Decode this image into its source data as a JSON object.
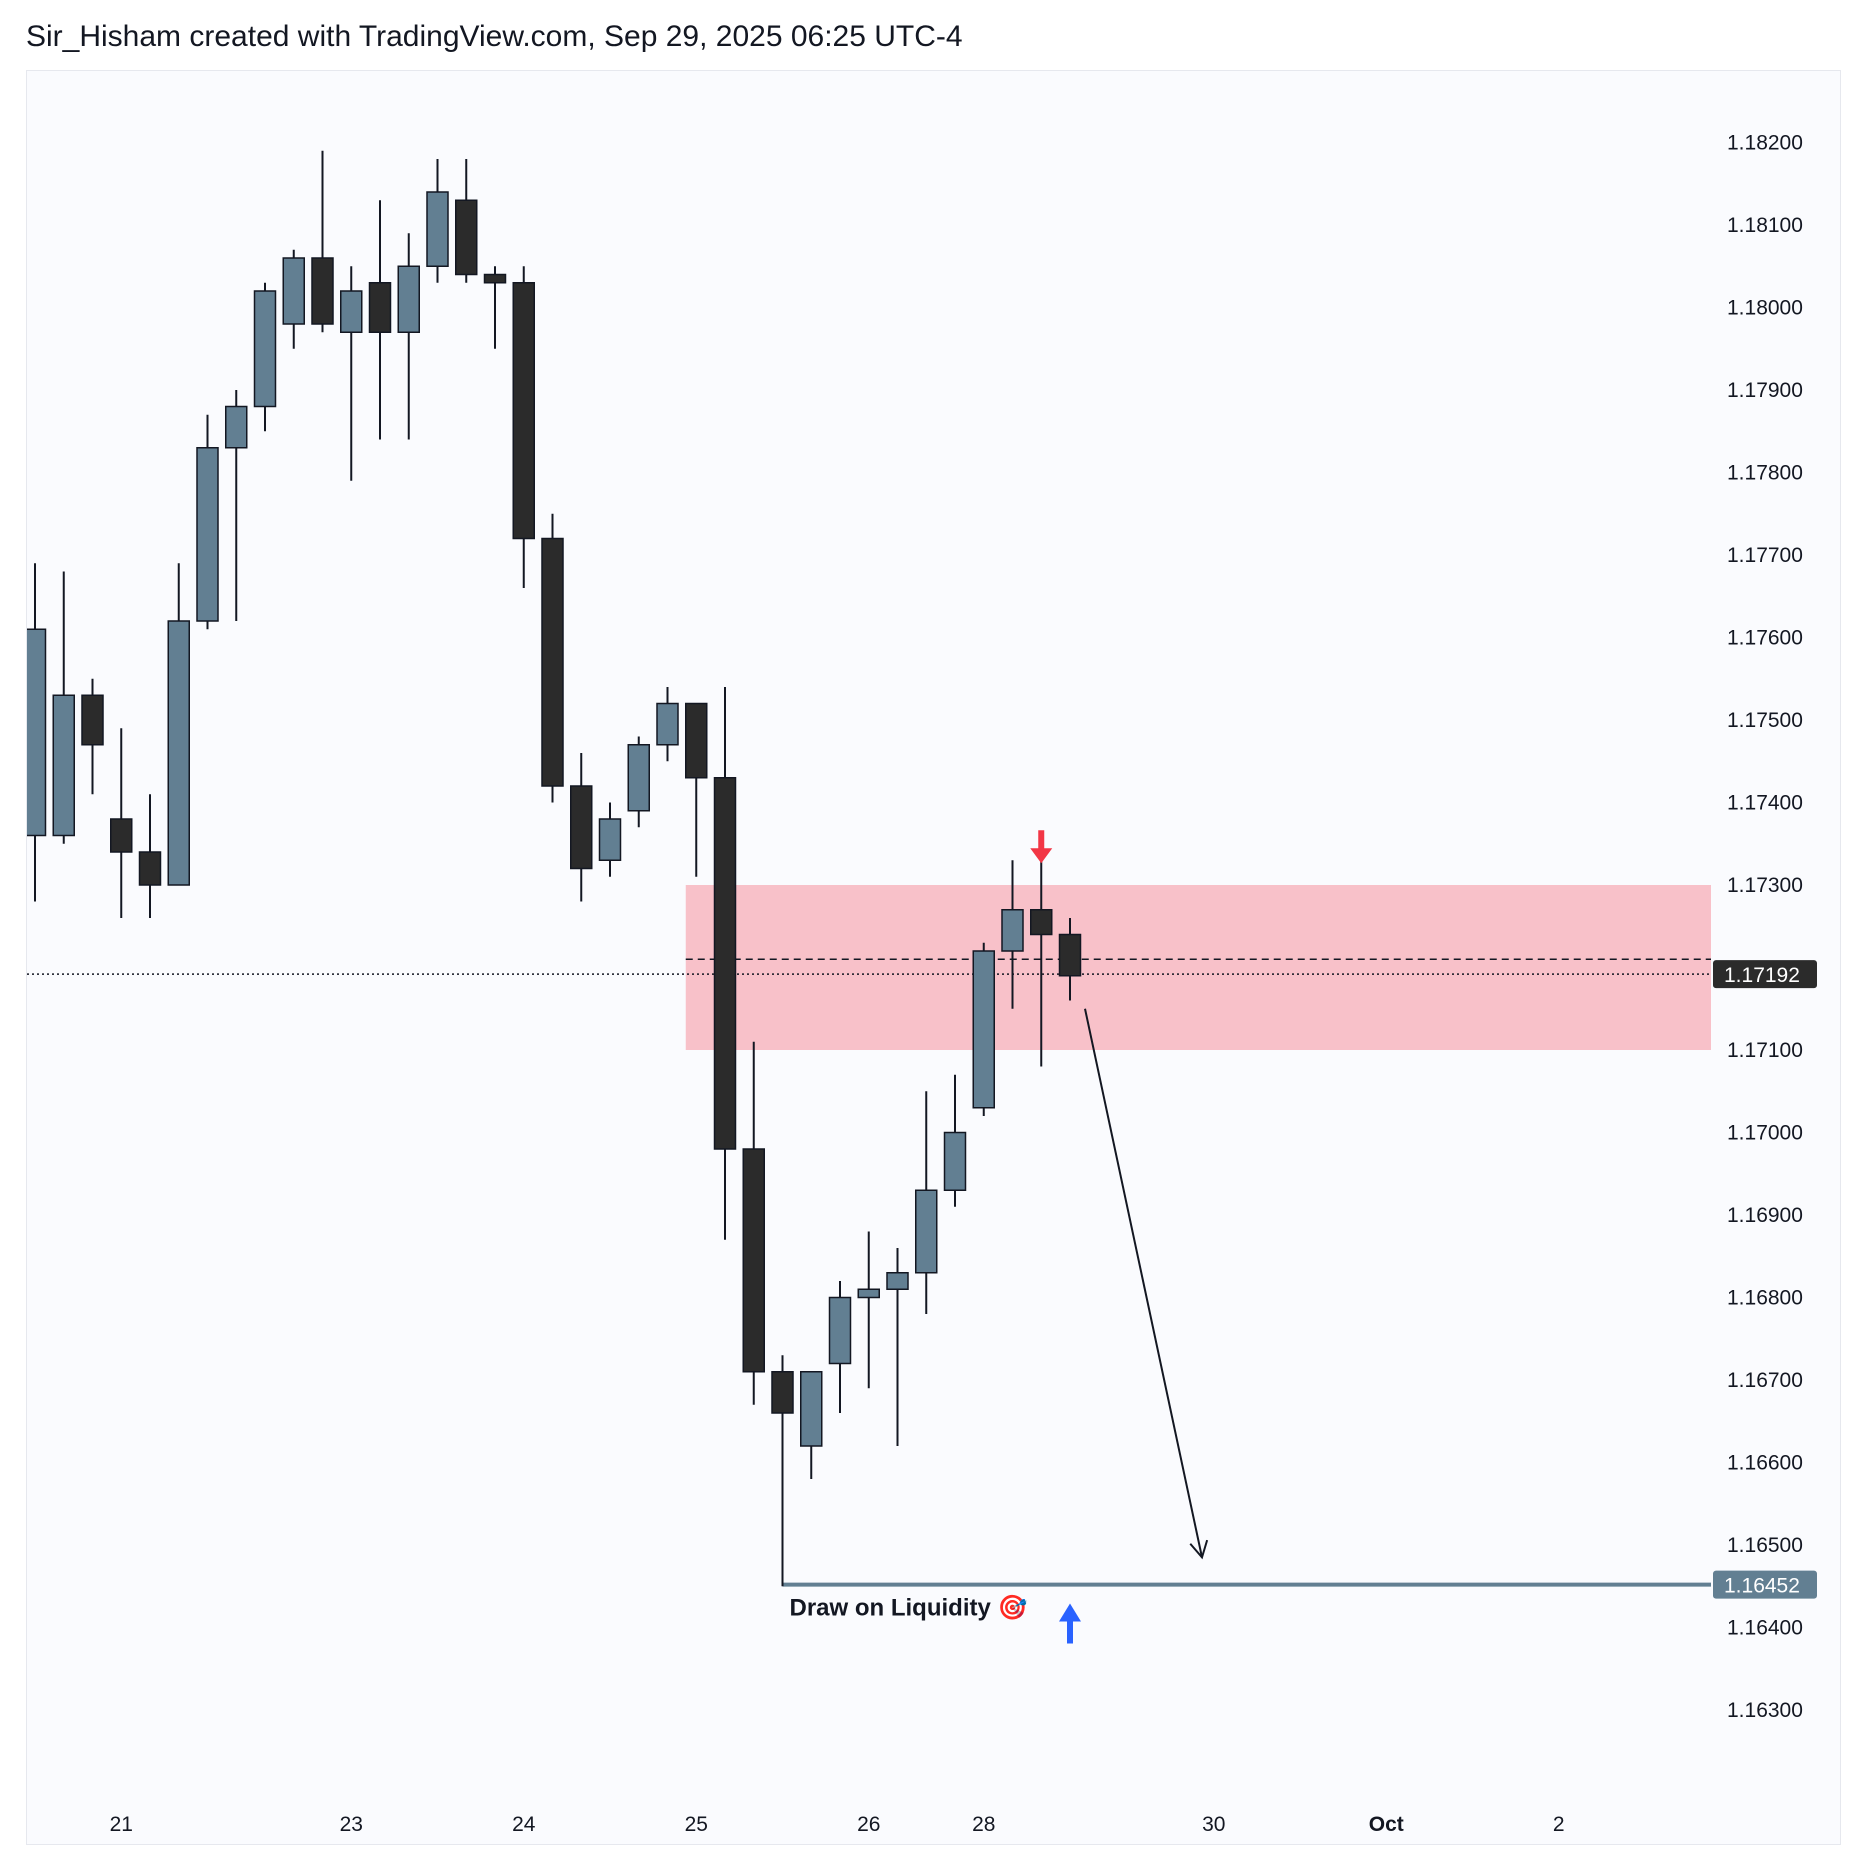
{
  "header": {
    "title": "Sir_Hisham created with TradingView.com, Sep 29, 2025 06:25 UTC-4"
  },
  "colors": {
    "bull": "#627f92",
    "bear": "#2b2b2b",
    "zone": "#f8c1c9",
    "target_line": "#627f92",
    "last_price_bg": "#2b2b2b",
    "target_label_bg": "#627f92",
    "down_arrow": "#f23645",
    "up_arrow": "#2962ff"
  },
  "chart_data": {
    "type": "candlestick",
    "title": "",
    "ylim": [
      1.1621,
      1.183
    ],
    "y_ticks": [
      "1.18200",
      "1.18100",
      "1.18000",
      "1.17900",
      "1.17800",
      "1.17700",
      "1.17600",
      "1.17500",
      "1.17400",
      "1.17300",
      "1.17100",
      "1.17000",
      "1.16900",
      "1.16800",
      "1.16700",
      "1.16600",
      "1.16500",
      "1.16400",
      "1.16300"
    ],
    "x_ticks": [
      {
        "label": "21",
        "bar": 3
      },
      {
        "label": "23",
        "bar": 11
      },
      {
        "label": "24",
        "bar": 17
      },
      {
        "label": "25",
        "bar": 23
      },
      {
        "label": "26",
        "bar": 29
      },
      {
        "label": "28",
        "bar": 33
      },
      {
        "label": "30",
        "bar": 41
      },
      {
        "label": "Oct",
        "bar": 47,
        "bold": true
      },
      {
        "label": "2",
        "bar": 53
      }
    ],
    "candles": [
      {
        "o": 1.1736,
        "h": 1.1769,
        "l": 1.1728,
        "c": 1.1761
      },
      {
        "o": 1.1736,
        "h": 1.1768,
        "l": 1.1735,
        "c": 1.1753
      },
      {
        "o": 1.1753,
        "h": 1.1755,
        "l": 1.1741,
        "c": 1.1747
      },
      {
        "o": 1.1738,
        "h": 1.1749,
        "l": 1.1726,
        "c": 1.1734
      },
      {
        "o": 1.1734,
        "h": 1.1741,
        "l": 1.1726,
        "c": 1.173
      },
      {
        "o": 1.173,
        "h": 1.1769,
        "l": 1.173,
        "c": 1.1762
      },
      {
        "o": 1.1762,
        "h": 1.1787,
        "l": 1.1761,
        "c": 1.1783
      },
      {
        "o": 1.1783,
        "h": 1.179,
        "l": 1.1762,
        "c": 1.1788
      },
      {
        "o": 1.1788,
        "h": 1.1803,
        "l": 1.1785,
        "c": 1.1802
      },
      {
        "o": 1.1798,
        "h": 1.1807,
        "l": 1.1795,
        "c": 1.1806
      },
      {
        "o": 1.1806,
        "h": 1.1819,
        "l": 1.1797,
        "c": 1.1798
      },
      {
        "o": 1.1797,
        "h": 1.1805,
        "l": 1.1779,
        "c": 1.1802
      },
      {
        "o": 1.1803,
        "h": 1.1813,
        "l": 1.1784,
        "c": 1.1797
      },
      {
        "o": 1.1797,
        "h": 1.1809,
        "l": 1.1784,
        "c": 1.1805
      },
      {
        "o": 1.1805,
        "h": 1.1818,
        "l": 1.1803,
        "c": 1.1814
      },
      {
        "o": 1.1813,
        "h": 1.1818,
        "l": 1.1803,
        "c": 1.1804
      },
      {
        "o": 1.1804,
        "h": 1.1805,
        "l": 1.1795,
        "c": 1.1803
      },
      {
        "o": 1.1803,
        "h": 1.1805,
        "l": 1.1766,
        "c": 1.1772
      },
      {
        "o": 1.1772,
        "h": 1.1775,
        "l": 1.174,
        "c": 1.1742
      },
      {
        "o": 1.1742,
        "h": 1.1746,
        "l": 1.1728,
        "c": 1.1732
      },
      {
        "o": 1.1733,
        "h": 1.174,
        "l": 1.1731,
        "c": 1.1738
      },
      {
        "o": 1.1739,
        "h": 1.1748,
        "l": 1.1737,
        "c": 1.1747
      },
      {
        "o": 1.1747,
        "h": 1.1754,
        "l": 1.1745,
        "c": 1.1752
      },
      {
        "o": 1.1752,
        "h": 1.1752,
        "l": 1.1731,
        "c": 1.1743
      },
      {
        "o": 1.1743,
        "h": 1.1754,
        "l": 1.1687,
        "c": 1.1698
      },
      {
        "o": 1.1698,
        "h": 1.1711,
        "l": 1.1667,
        "c": 1.1671
      },
      {
        "o": 1.1671,
        "h": 1.1673,
        "l": 1.1645,
        "c": 1.1666
      },
      {
        "o": 1.1662,
        "h": 1.1671,
        "l": 1.1658,
        "c": 1.1671
      },
      {
        "o": 1.1672,
        "h": 1.1682,
        "l": 1.1666,
        "c": 1.168
      },
      {
        "o": 1.168,
        "h": 1.1688,
        "l": 1.1669,
        "c": 1.1681
      },
      {
        "o": 1.1681,
        "h": 1.1686,
        "l": 1.1662,
        "c": 1.1683
      },
      {
        "o": 1.1683,
        "h": 1.1705,
        "l": 1.1678,
        "c": 1.1693
      },
      {
        "o": 1.1693,
        "h": 1.1707,
        "l": 1.1691,
        "c": 1.17
      },
      {
        "o": 1.1703,
        "h": 1.1723,
        "l": 1.1702,
        "c": 1.1722
      },
      {
        "o": 1.1722,
        "h": 1.1733,
        "l": 1.1715,
        "c": 1.1727
      },
      {
        "o": 1.1727,
        "h": 1.1733,
        "l": 1.1708,
        "c": 1.1724
      },
      {
        "o": 1.1724,
        "h": 1.1726,
        "l": 1.1716,
        "c": 1.1719
      }
    ],
    "last_price": 1.17192,
    "last_price_label": "1.17192",
    "target_price": 1.16452,
    "target_price_label": "1.16452",
    "zone": {
      "top": 1.173,
      "bottom": 1.171,
      "from_bar": 23
    },
    "dashed_level": 1.1721,
    "annotation": "Draw on Liquidity 🎯"
  }
}
